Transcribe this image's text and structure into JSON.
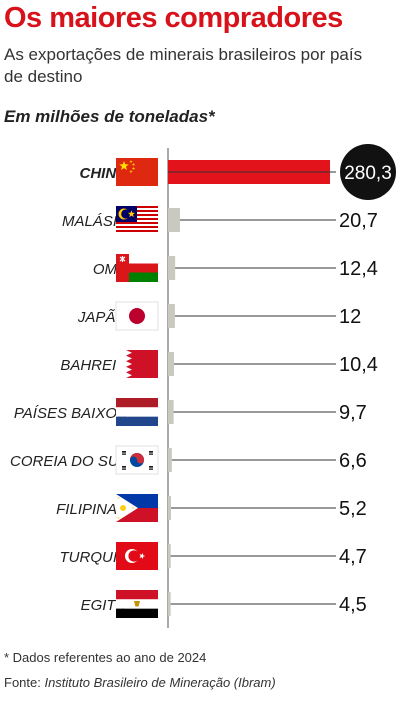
{
  "header": {
    "title": "Os maiores compradores",
    "subtitle": "As exportações de minerais brasileiros por país de destino",
    "unit_label": "Em milhões de toneladas*"
  },
  "footer": {
    "note": "* Dados referentes ao ano de 2024",
    "source_prefix": "Fonte: ",
    "source_name": "Instituto Brasileiro de Mineração (Ibram)"
  },
  "colors": {
    "highlight": "#e3131c",
    "bar": "#c9c9c0",
    "title": "#d8121b",
    "label_badge": "#111111"
  },
  "chart_data": {
    "type": "bar",
    "orientation": "horizontal",
    "categories": [
      "CHINA",
      "MALÁSIA",
      "OMÃ",
      "JAPÃO",
      "BAHREIN",
      "PAÍSES BAIXOS",
      "COREIA DO SUL",
      "FILIPINAS",
      "TURQUIA",
      "EGITO"
    ],
    "flags": [
      "china-flag-icon",
      "malaysia-flag-icon",
      "oman-flag-icon",
      "japan-flag-icon",
      "bahrain-flag-icon",
      "netherlands-flag-icon",
      "south-korea-flag-icon",
      "philippines-flag-icon",
      "turkey-flag-icon",
      "egypt-flag-icon"
    ],
    "values": [
      280.3,
      20.7,
      12.4,
      12,
      10.4,
      9.7,
      6.6,
      5.2,
      4.7,
      4.5
    ],
    "value_labels": [
      "280,3",
      "20,7",
      "12,4",
      "12",
      "10,4",
      "9,7",
      "6,6",
      "5,2",
      "4,7",
      "4,5"
    ],
    "highlight_index": 0,
    "xlim": [
      0,
      280.3
    ]
  }
}
